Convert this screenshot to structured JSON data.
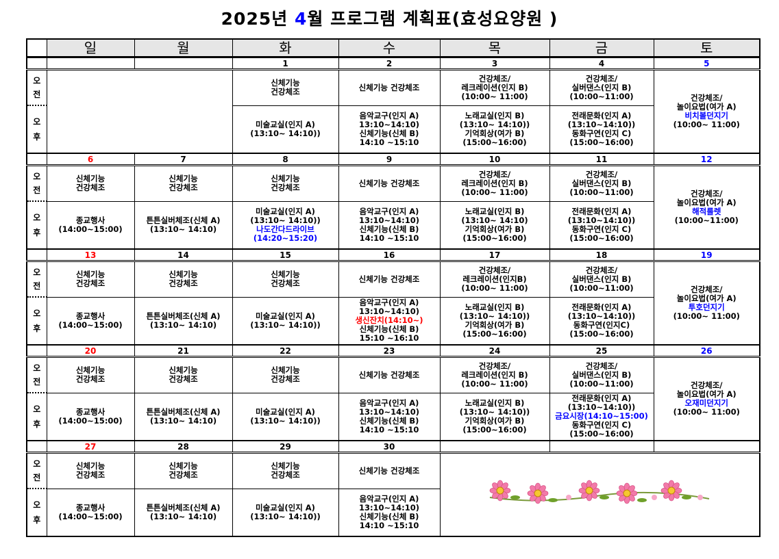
{
  "title": {
    "prefix": "2025년 ",
    "month": "4",
    "suffix": "월 프로그램 계획표(효성요양원 )"
  },
  "colors": {
    "sunday": "#ff0000",
    "saturday": "#0000ff",
    "highlight_blue": "#0000ff",
    "highlight_red": "#ff0000",
    "header_bg": "#e6e6e6"
  },
  "weekdays": [
    "일",
    "월",
    "화",
    "수",
    "목",
    "금",
    "토"
  ],
  "labels": {
    "am": [
      "오",
      "전"
    ],
    "pm": [
      "오",
      "후"
    ]
  },
  "weeks": [
    {
      "dates": [
        "",
        "",
        "1",
        "2",
        "3",
        "4",
        "5"
      ],
      "merge_sun_mon_blank": true,
      "am": [
        null,
        null,
        [
          "신체기능",
          "건강체조"
        ],
        [
          "신체기능 건강체조"
        ],
        [
          "건강체조/",
          "레크레이션(인지 B)",
          "(10:00~ 11:00)"
        ],
        [
          "건강체조/",
          "실버댄스(인지 B)",
          "(10:00~11:00)"
        ]
      ],
      "pm": [
        null,
        null,
        [
          "미술교실(인지 A)",
          "(13:10~ 14:10))"
        ],
        [
          "음악교구(인지 A)",
          "13:10~14:10)",
          "신체기능(신체 B)",
          "14:10 ~15:10"
        ],
        [
          "노래교실(인지 B)",
          "(13:10~ 14:10))",
          "기억회상(여가 B)",
          "(15:00~16:00)"
        ],
        [
          "전래문화(인지 A)",
          "(13:10~14:10))",
          "동화구연(인지 C)",
          "(15:00~16:00)"
        ]
      ],
      "sat": [
        "건강체조/",
        "놀이요법(여가 A)",
        {
          "t": "비치볼던지기",
          "c": "blue"
        },
        "(10:00~ 11:00)"
      ]
    },
    {
      "dates": [
        "6",
        "7",
        "8",
        "9",
        "10",
        "11",
        "12"
      ],
      "am": [
        [
          "신체기능",
          "건강체조"
        ],
        [
          "신체기능",
          "건강체조"
        ],
        [
          "신체기능",
          "건강체조"
        ],
        [
          "신체기능 건강체조"
        ],
        [
          "건강체조/",
          "레크레이션(인지 B)",
          "(10:00~ 11:00)"
        ],
        [
          "건강체조/",
          "실버댄스(인지 B)",
          "(10:00~11:00)"
        ]
      ],
      "pm": [
        [
          "종교행사",
          "(14:00~15:00)"
        ],
        [
          "튼튼실버체조(신체 A)",
          "(13:10~ 14:10)"
        ],
        [
          "미술교실(인지 A)",
          "(13:10~ 14:10))",
          {
            "t": "나도간다드라이브",
            "c": "blue"
          },
          {
            "t": "(14:20~15:20)",
            "c": "blue"
          }
        ],
        [
          "음악교구(인지 A)",
          "13:10~14:10)",
          "신체기능(신체 B)",
          "14:10 ~15:10"
        ],
        [
          "노래교실(인지 B)",
          "(13:10~ 14:10)",
          "기억회상(여가 B)",
          "(15:00~16:00)"
        ],
        [
          "전래문화(인지 A)",
          "(13:10~14:10))",
          "동화구연(인지 C)",
          "(15:00~16:00)"
        ]
      ],
      "sat": [
        "건강체조/",
        "놀이요법(여가 A)",
        {
          "t": "해적룰렛",
          "c": "blue"
        },
        "(10:00~11:00)"
      ]
    },
    {
      "dates": [
        "13",
        "14",
        "15",
        "16",
        "17",
        "18",
        "19"
      ],
      "am": [
        [
          "신체기능",
          "건강체조"
        ],
        [
          "신체기능",
          "건강체조"
        ],
        [
          "신체기능",
          "건강체조"
        ],
        [
          "신체기능 건강체조"
        ],
        [
          "건강체조/",
          "레크레이션(인지B)",
          "(10:00~ 11:00)"
        ],
        [
          "건강체조/",
          "실버댄스(인지 B)",
          "(10:00~11:00)"
        ]
      ],
      "pm": [
        [
          "종교행사",
          "(14:00~15:00)"
        ],
        [
          "튼튼실버체조(신체 A)",
          "(13:10~ 14:10)"
        ],
        [
          "미술교실(인지 A)",
          "(13:10~ 14:10))"
        ],
        [
          "음악교구(인지 A)",
          "13:10~14:10)",
          {
            "t": "생신잔치(14:10~)",
            "c": "red"
          },
          "신체기능(신체 B)",
          "15:10 ~16:10"
        ],
        [
          "노래교실(인지 B)",
          "(13:10~ 14:10))",
          "기억회상(여가 B)",
          "(15:00~16:00)"
        ],
        [
          "전래문화(인지 A)",
          "(13:10~14:10))",
          "동화구연(인지C)",
          "(15:00~16:00)"
        ]
      ],
      "sat": [
        "건강체조/",
        "놀이요법(여가 A)",
        {
          "t": "투호던지기",
          "c": "blue"
        },
        "(10:00~ 11:00)"
      ]
    },
    {
      "dates": [
        "20",
        "21",
        "22",
        "23",
        "24",
        "25",
        "26"
      ],
      "am": [
        [
          "신체기능",
          "건강체조"
        ],
        [
          "신체기능",
          "건강체조"
        ],
        [
          "신체기능",
          "건강체조"
        ],
        [
          "신체기능 건강체조"
        ],
        [
          "건강체조/",
          "레크레이션(인지 B)",
          "(10:00~ 11:00)"
        ],
        [
          "건강체조/",
          "실버댄스(인지 B)",
          "(10:00~11:00)"
        ]
      ],
      "pm": [
        [
          "종교행사",
          "(14:00~15:00)"
        ],
        [
          "튼튼실버체조(신체 A)",
          "(13:10~ 14:10)"
        ],
        [
          "미술교실(인지 A)",
          "(13:10~ 14:10))"
        ],
        [
          "음악교구(인지 A)",
          "13:10~14:10)",
          "신체기능(신체 B)",
          "14:10 ~15:10"
        ],
        [
          "노래교실(인지 B)",
          "(13:10~ 14:10))",
          "기억회상(여가 B)",
          "(15:00~16:00)"
        ],
        [
          "전래문화(인지 A)",
          "(13:10~14:10))",
          {
            "t": "금요시장(14:10~15:00)",
            "c": "blue"
          },
          "동화구연(인지 C)",
          "(15:00~16:00)"
        ]
      ],
      "sat": [
        "건강체조/",
        "놀이요법(여가 A)",
        {
          "t": "오재미던지기",
          "c": "blue"
        },
        "(10:00~ 11:00)"
      ]
    },
    {
      "dates": [
        "27",
        "28",
        "29",
        "30",
        "",
        "",
        ""
      ],
      "merge_thu_sat_flowers": true,
      "am": [
        [
          "신체기능",
          "건강체조"
        ],
        [
          "신체기능",
          "건강체조"
        ],
        [
          "신체기능",
          "건강체조"
        ],
        [
          "신체기능 건강체조"
        ]
      ],
      "pm": [
        [
          "종교행사",
          "(14:00~15:00)"
        ],
        [
          "튼튼실버체조(신체 A)",
          "(13:10~ 14:10)"
        ],
        [
          "미술교실(인지 A)",
          "(13:10~ 14:10))"
        ],
        [
          "음악교구(인지 A)",
          "13:10~14:10)",
          "신체기능(신체 B)",
          "14:10 ~15:10"
        ]
      ],
      "decoration": "flower-garland-icon"
    }
  ]
}
